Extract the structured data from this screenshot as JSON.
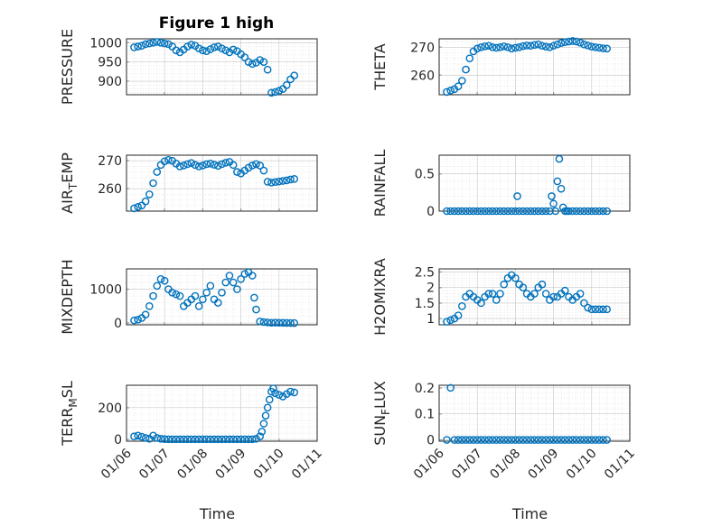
{
  "chart_data": [
    {
      "id": "pressure",
      "type": "scatter",
      "title": "Figure 1 high",
      "ylabel": "PRESSURE",
      "ylim": [
        865,
        1010
      ],
      "yticks": [
        900,
        950,
        1000
      ],
      "xlim": [
        0,
        5
      ],
      "xticks": [
        "01/06",
        "01/07",
        "01/08",
        "01/09",
        "01/10",
        "01/11"
      ],
      "show_xticklabels": false,
      "xlabel": "",
      "grid": true,
      "marker": "circle",
      "x": [
        0.2,
        0.3,
        0.4,
        0.5,
        0.6,
        0.7,
        0.8,
        0.9,
        1.0,
        1.1,
        1.2,
        1.3,
        1.4,
        1.5,
        1.6,
        1.7,
        1.8,
        1.9,
        2.0,
        2.1,
        2.2,
        2.3,
        2.4,
        2.5,
        2.6,
        2.7,
        2.8,
        2.9,
        3.0,
        3.1,
        3.2,
        3.3,
        3.4,
        3.5,
        3.6,
        3.7,
        3.8,
        3.9,
        4.0,
        4.1,
        4.2,
        4.3,
        4.4
      ],
      "y": [
        988,
        990,
        992,
        996,
        998,
        1000,
        1002,
        1000,
        998,
        996,
        990,
        980,
        975,
        982,
        990,
        995,
        992,
        985,
        980,
        978,
        983,
        988,
        990,
        985,
        980,
        975,
        982,
        978,
        970,
        962,
        950,
        945,
        948,
        955,
        950,
        930,
        870,
        872,
        875,
        880,
        890,
        905,
        915
      ]
    },
    {
      "id": "theta",
      "type": "scatter",
      "ylabel": "THETA",
      "ylim": [
        253,
        273
      ],
      "yticks": [
        260,
        270
      ],
      "xlim": [
        0,
        5
      ],
      "xticks": [
        "01/06",
        "01/07",
        "01/08",
        "01/09",
        "01/10",
        "01/11"
      ],
      "show_xticklabels": false,
      "xlabel": "",
      "grid": true,
      "marker": "circle",
      "x": [
        0.2,
        0.3,
        0.4,
        0.5,
        0.6,
        0.7,
        0.8,
        0.9,
        1.0,
        1.1,
        1.2,
        1.3,
        1.4,
        1.5,
        1.6,
        1.7,
        1.8,
        1.9,
        2.0,
        2.1,
        2.2,
        2.3,
        2.4,
        2.5,
        2.6,
        2.7,
        2.8,
        2.9,
        3.0,
        3.1,
        3.2,
        3.3,
        3.4,
        3.5,
        3.6,
        3.7,
        3.8,
        3.9,
        4.0,
        4.1,
        4.2,
        4.3,
        4.4
      ],
      "y": [
        254,
        254.5,
        255,
        256,
        258,
        262,
        266,
        268.5,
        269.5,
        270,
        270.3,
        270.5,
        270,
        269.8,
        270,
        270.3,
        270,
        269.5,
        269.8,
        270,
        270.4,
        270.6,
        270.5,
        270.8,
        271,
        270.5,
        270.2,
        270,
        270.5,
        271,
        271.5,
        271.8,
        272,
        272.2,
        272,
        271.6,
        271,
        270.6,
        270.2,
        270,
        269.8,
        269.6,
        269.5
      ]
    },
    {
      "id": "airtemp",
      "type": "scatter",
      "ylabel": "AIR_TEMP",
      "ylabel_base": "AIR",
      "ylabel_sub": "T",
      "ylabel_rest": "EMP",
      "ylim": [
        252,
        272
      ],
      "yticks": [
        260,
        270
      ],
      "xlim": [
        0,
        5
      ],
      "xticks": [
        "01/06",
        "01/07",
        "01/08",
        "01/09",
        "01/10",
        "01/11"
      ],
      "show_xticklabels": false,
      "xlabel": "",
      "grid": true,
      "marker": "circle",
      "x": [
        0.2,
        0.3,
        0.4,
        0.5,
        0.6,
        0.7,
        0.8,
        0.9,
        1.0,
        1.1,
        1.2,
        1.3,
        1.4,
        1.5,
        1.6,
        1.7,
        1.8,
        1.9,
        2.0,
        2.1,
        2.2,
        2.3,
        2.4,
        2.5,
        2.6,
        2.7,
        2.8,
        2.9,
        3.0,
        3.1,
        3.2,
        3.3,
        3.4,
        3.5,
        3.6,
        3.7,
        3.8,
        3.9,
        4.0,
        4.1,
        4.2,
        4.3,
        4.4
      ],
      "y": [
        253,
        253.5,
        254,
        255.5,
        258,
        262,
        266,
        268.5,
        269.8,
        270.3,
        270,
        269,
        268,
        268.3,
        268.8,
        269.2,
        268.5,
        268,
        268.3,
        268.8,
        269,
        268.6,
        268.2,
        268.8,
        269.3,
        269.6,
        268.5,
        266,
        265.5,
        266.5,
        267.5,
        268.3,
        268.8,
        268.3,
        266.5,
        262.5,
        262.2,
        262.4,
        262.6,
        262.8,
        263,
        263.3,
        263.5
      ]
    },
    {
      "id": "rainfall",
      "type": "scatter",
      "ylabel": "RAINFALL",
      "ylim": [
        0,
        0.75
      ],
      "yticks": [
        0,
        0.5
      ],
      "xlim": [
        0,
        5
      ],
      "xticks": [
        "01/06",
        "01/07",
        "01/08",
        "01/09",
        "01/10",
        "01/11"
      ],
      "show_xticklabels": false,
      "xlabel": "",
      "grid": true,
      "marker": "circle",
      "x": [
        0.2,
        0.3,
        0.4,
        0.5,
        0.6,
        0.7,
        0.8,
        0.9,
        1.0,
        1.1,
        1.2,
        1.3,
        1.4,
        1.5,
        1.6,
        1.7,
        1.8,
        1.9,
        2.0,
        2.05,
        2.1,
        2.2,
        2.3,
        2.4,
        2.5,
        2.6,
        2.7,
        2.8,
        2.9,
        2.95,
        3.0,
        3.05,
        3.1,
        3.15,
        3.2,
        3.25,
        3.3,
        3.35,
        3.4,
        3.5,
        3.6,
        3.7,
        3.8,
        3.9,
        4.0,
        4.1,
        4.2,
        4.3,
        4.4
      ],
      "y": [
        0,
        0,
        0,
        0,
        0,
        0,
        0,
        0,
        0,
        0,
        0,
        0,
        0,
        0,
        0,
        0,
        0,
        0,
        0,
        0.2,
        0,
        0,
        0,
        0,
        0,
        0,
        0,
        0,
        0,
        0.2,
        0.1,
        0,
        0.4,
        0.7,
        0.3,
        0.05,
        0,
        0,
        0,
        0,
        0,
        0,
        0,
        0,
        0,
        0,
        0,
        0,
        0
      ]
    },
    {
      "id": "mixdepth",
      "type": "scatter",
      "ylabel": "MIXDEPTH",
      "ylim": [
        -50,
        1600
      ],
      "yticks": [
        0,
        1000
      ],
      "xlim": [
        0,
        5
      ],
      "xticks": [
        "01/06",
        "01/07",
        "01/08",
        "01/09",
        "01/10",
        "01/11"
      ],
      "show_xticklabels": false,
      "xlabel": "",
      "grid": true,
      "marker": "circle",
      "x": [
        0.2,
        0.3,
        0.4,
        0.5,
        0.6,
        0.7,
        0.8,
        0.9,
        1.0,
        1.1,
        1.2,
        1.3,
        1.4,
        1.5,
        1.6,
        1.7,
        1.8,
        1.9,
        2.0,
        2.1,
        2.2,
        2.3,
        2.4,
        2.5,
        2.6,
        2.7,
        2.8,
        2.9,
        3.0,
        3.1,
        3.2,
        3.3,
        3.35,
        3.4,
        3.5,
        3.6,
        3.7,
        3.8,
        3.9,
        4.0,
        4.1,
        4.2,
        4.3,
        4.4
      ],
      "y": [
        80,
        100,
        150,
        250,
        500,
        800,
        1100,
        1300,
        1250,
        1000,
        900,
        850,
        800,
        500,
        600,
        700,
        800,
        500,
        700,
        900,
        1100,
        700,
        600,
        900,
        1200,
        1400,
        1200,
        1000,
        1300,
        1450,
        1500,
        1400,
        750,
        400,
        50,
        30,
        20,
        10,
        15,
        10,
        8,
        5,
        3,
        2
      ]
    },
    {
      "id": "h2omixra",
      "type": "scatter",
      "ylabel": "H2OMIXRA",
      "ylim": [
        0.8,
        2.6
      ],
      "yticks": [
        1,
        1.5,
        2,
        2.5
      ],
      "xlim": [
        0,
        5
      ],
      "xticks": [
        "01/06",
        "01/07",
        "01/08",
        "01/09",
        "01/10",
        "01/11"
      ],
      "show_xticklabels": false,
      "xlabel": "",
      "grid": true,
      "marker": "circle",
      "x": [
        0.2,
        0.3,
        0.4,
        0.5,
        0.6,
        0.7,
        0.8,
        0.9,
        1.0,
        1.1,
        1.2,
        1.3,
        1.4,
        1.5,
        1.6,
        1.7,
        1.8,
        1.9,
        2.0,
        2.1,
        2.2,
        2.3,
        2.4,
        2.5,
        2.6,
        2.7,
        2.8,
        2.9,
        3.0,
        3.1,
        3.2,
        3.3,
        3.4,
        3.5,
        3.6,
        3.7,
        3.8,
        3.9,
        4.0,
        4.1,
        4.2,
        4.3,
        4.4
      ],
      "y": [
        0.9,
        0.95,
        1.0,
        1.1,
        1.4,
        1.7,
        1.8,
        1.7,
        1.6,
        1.5,
        1.7,
        1.8,
        1.8,
        1.6,
        1.8,
        2.1,
        2.3,
        2.4,
        2.3,
        2.1,
        2.0,
        1.8,
        1.7,
        1.8,
        2.0,
        2.1,
        1.8,
        1.6,
        1.7,
        1.7,
        1.8,
        1.9,
        1.7,
        1.6,
        1.7,
        1.8,
        1.5,
        1.35,
        1.3,
        1.3,
        1.3,
        1.3,
        1.3
      ]
    },
    {
      "id": "terr_msl",
      "type": "scatter",
      "ylabel": "TERR_MSL",
      "ylabel_base": "TERR",
      "ylabel_sub": "M",
      "ylabel_rest": "SL",
      "ylim": [
        -10,
        340
      ],
      "yticks": [
        0,
        200
      ],
      "xlim": [
        0,
        5
      ],
      "xticks": [
        "01/06",
        "01/07",
        "01/08",
        "01/09",
        "01/10",
        "01/11"
      ],
      "show_xticklabels": true,
      "xlabel": "Time",
      "grid": true,
      "marker": "circle",
      "x": [
        0.2,
        0.3,
        0.4,
        0.5,
        0.6,
        0.7,
        0.8,
        0.9,
        1.0,
        1.1,
        1.2,
        1.3,
        1.4,
        1.5,
        1.6,
        1.7,
        1.8,
        1.9,
        2.0,
        2.1,
        2.2,
        2.3,
        2.4,
        2.5,
        2.6,
        2.7,
        2.8,
        2.9,
        3.0,
        3.1,
        3.2,
        3.3,
        3.4,
        3.5,
        3.55,
        3.6,
        3.65,
        3.7,
        3.75,
        3.8,
        3.85,
        3.9,
        4.0,
        4.1,
        4.2,
        4.3,
        4.4
      ],
      "y": [
        20,
        25,
        18,
        10,
        5,
        25,
        10,
        5,
        3,
        2,
        2,
        2,
        2,
        2,
        2,
        2,
        2,
        2,
        2,
        2,
        2,
        2,
        2,
        2,
        2,
        2,
        2,
        2,
        2,
        2,
        2,
        2,
        5,
        20,
        50,
        100,
        150,
        200,
        250,
        300,
        320,
        290,
        280,
        270,
        285,
        300,
        295
      ]
    },
    {
      "id": "sun_flux",
      "type": "scatter",
      "ylabel": "SUN_FLUX",
      "ylabel_base": "SUN",
      "ylabel_sub": "F",
      "ylabel_rest": "LUX",
      "ylim": [
        -0.005,
        0.21
      ],
      "yticks": [
        0,
        0.1,
        0.2
      ],
      "xlim": [
        0,
        5
      ],
      "xticks": [
        "01/06",
        "01/07",
        "01/08",
        "01/09",
        "01/10",
        "01/11"
      ],
      "show_xticklabels": true,
      "xlabel": "Time",
      "grid": true,
      "marker": "circle",
      "x": [
        0.2,
        0.3,
        0.4,
        0.5,
        0.6,
        0.7,
        0.8,
        0.9,
        1.0,
        1.1,
        1.2,
        1.3,
        1.4,
        1.5,
        1.6,
        1.7,
        1.8,
        1.9,
        2.0,
        2.1,
        2.2,
        2.3,
        2.4,
        2.5,
        2.6,
        2.7,
        2.8,
        2.9,
        3.0,
        3.1,
        3.2,
        3.3,
        3.4,
        3.5,
        3.6,
        3.7,
        3.8,
        3.9,
        4.0,
        4.1,
        4.2,
        4.3,
        4.4
      ],
      "y": [
        0,
        0.2,
        0,
        0,
        0,
        0,
        0,
        0,
        0,
        0,
        0,
        0,
        0,
        0,
        0,
        0,
        0,
        0,
        0,
        0,
        0,
        0,
        0,
        0,
        0,
        0,
        0,
        0,
        0,
        0,
        0,
        0,
        0,
        0,
        0,
        0,
        0,
        0,
        0,
        0,
        0,
        0,
        0
      ]
    }
  ]
}
